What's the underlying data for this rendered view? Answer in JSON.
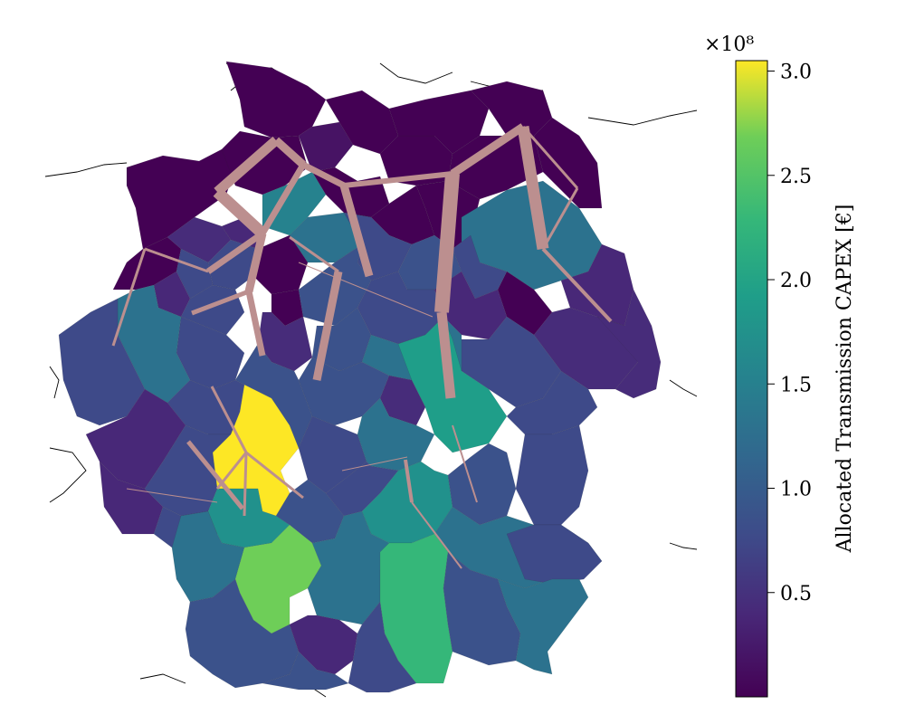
{
  "colorbar": {
    "label": "Allocated Transmission CAPEX [€]",
    "offset_text": "×10⁸",
    "ticks": [
      "0.5",
      "1.0",
      "1.5",
      "2.0",
      "2.5",
      "3.0"
    ],
    "tick_values": [
      0.5,
      1.0,
      1.5,
      2.0,
      2.5,
      3.0
    ],
    "min": 0.0,
    "max": 3.05,
    "colormap": "viridis",
    "colors": [
      "#440154",
      "#3b528b",
      "#21918c",
      "#5ec962",
      "#fde725"
    ]
  },
  "line_color": "#bc8f8f",
  "map": {
    "projection_region": "Germany",
    "background": "#ffffff"
  }
}
